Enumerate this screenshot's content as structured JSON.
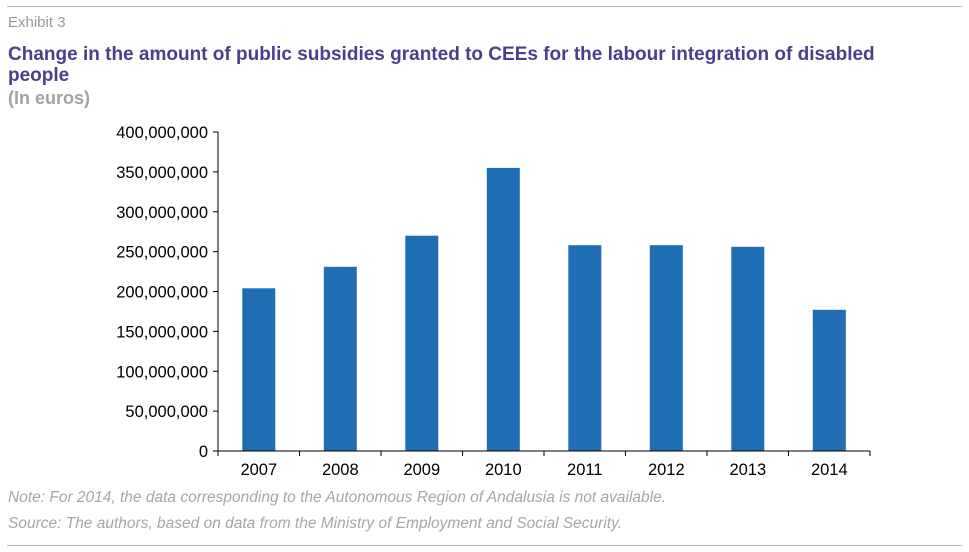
{
  "header": {
    "exhibit": "Exhibit 3",
    "title": "Change in the amount of public subsidies granted to CEEs for the labour integration of disabled people",
    "subtitle": "(In euros)"
  },
  "footer": {
    "note": "Note: For 2014, the data corresponding to the Autonomous Region of Andalusia is not available.",
    "source": "Source: The authors, based on data from the Ministry of Employment and Social Security."
  },
  "colors": {
    "bar": "#1f6db3",
    "title": "#4b3f8c",
    "axis": "#000000"
  },
  "chart_data": {
    "type": "bar",
    "categories": [
      "2007",
      "2008",
      "2009",
      "2010",
      "2011",
      "2012",
      "2013",
      "2014"
    ],
    "values": [
      204000000,
      231000000,
      270000000,
      355000000,
      258000000,
      258000000,
      256000000,
      177000000
    ],
    "ylim": [
      0,
      400000000
    ],
    "yticks": [
      0,
      50000000,
      100000000,
      150000000,
      200000000,
      250000000,
      300000000,
      350000000,
      400000000
    ],
    "ytick_labels": [
      "0",
      "50,000,000",
      "100,000,000",
      "150,000,000",
      "200,000,000",
      "250,000,000",
      "300,000,000",
      "350,000,000",
      "400,000,000"
    ],
    "grid": false,
    "legend": "none"
  }
}
